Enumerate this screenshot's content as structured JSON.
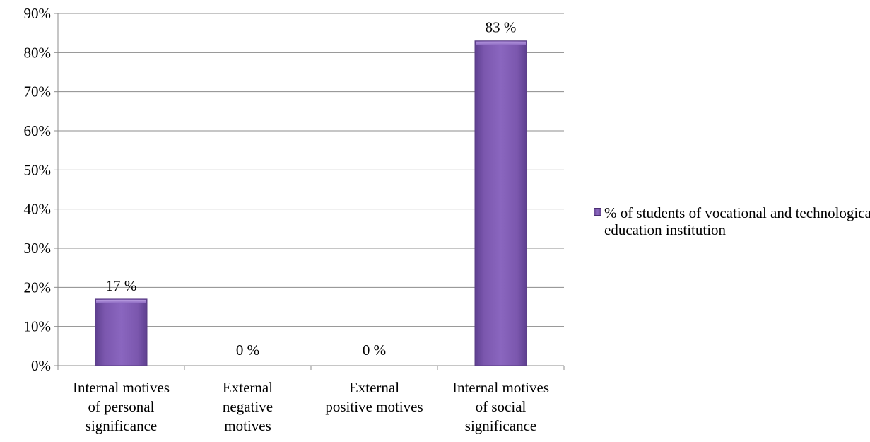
{
  "chart_data": {
    "type": "bar",
    "categories": [
      [
        "Internal motives",
        "of personal",
        "significance"
      ],
      [
        "External",
        "negative",
        "motives"
      ],
      [
        "External",
        "positive motives"
      ],
      [
        "Internal motives",
        "of social",
        "significance"
      ]
    ],
    "series": [
      {
        "name": "% of students of vocational and technological education institution",
        "values": [
          17,
          0,
          0,
          83
        ],
        "data_labels": [
          "17 %",
          "0 %",
          "0 %",
          "83 %"
        ],
        "color": "#7b57ae"
      }
    ],
    "ylim": [
      0,
      90
    ],
    "yticks": [
      0,
      10,
      20,
      30,
      40,
      50,
      60,
      70,
      80,
      90
    ],
    "ytick_labels": [
      "0%",
      "10%",
      "20%",
      "30%",
      "40%",
      "50%",
      "60%",
      "70%",
      "80%",
      "90%"
    ],
    "grid": true,
    "legend_position": "right"
  },
  "legend": {
    "label": "% of students of vocational and technological education institution"
  },
  "colors": {
    "bar": "#7b57ae",
    "bar_dark": "#5a3d85",
    "grid": "#8c8c8c"
  }
}
